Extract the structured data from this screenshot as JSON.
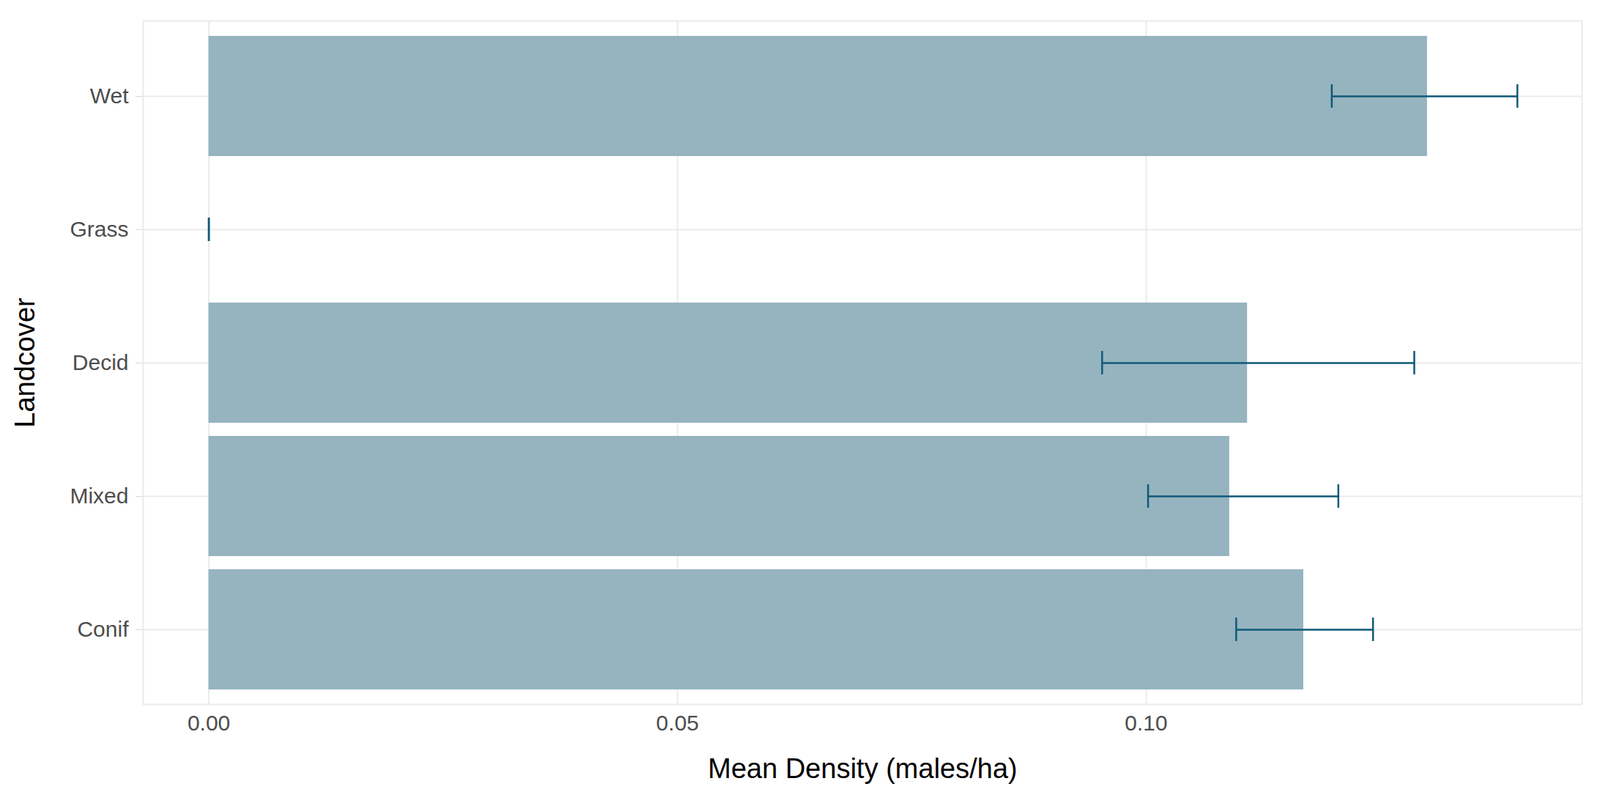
{
  "chart_data": {
    "type": "bar",
    "orientation": "horizontal",
    "x_label": "Mean Density (males/ha)",
    "y_label": "Landcover",
    "categories": [
      "Wet",
      "Grass",
      "Decid",
      "Mixed",
      "Conif"
    ],
    "values": [
      0.13,
      0.0,
      0.1108,
      0.1089,
      0.1168
    ],
    "error_low": [
      0.1198,
      0.0,
      0.0953,
      0.1002,
      0.1096
    ],
    "error_high": [
      0.1396,
      0.0,
      0.1286,
      0.1205,
      0.1242
    ],
    "color": "#96b4c0",
    "xlim": [
      -0.007,
      0.1465
    ],
    "xticks": [
      {
        "value": 0,
        "label": "0.00"
      },
      {
        "value": 0.05,
        "label": "0.05"
      },
      {
        "value": 0.1,
        "label": "0.10"
      }
    ],
    "grid": true
  }
}
